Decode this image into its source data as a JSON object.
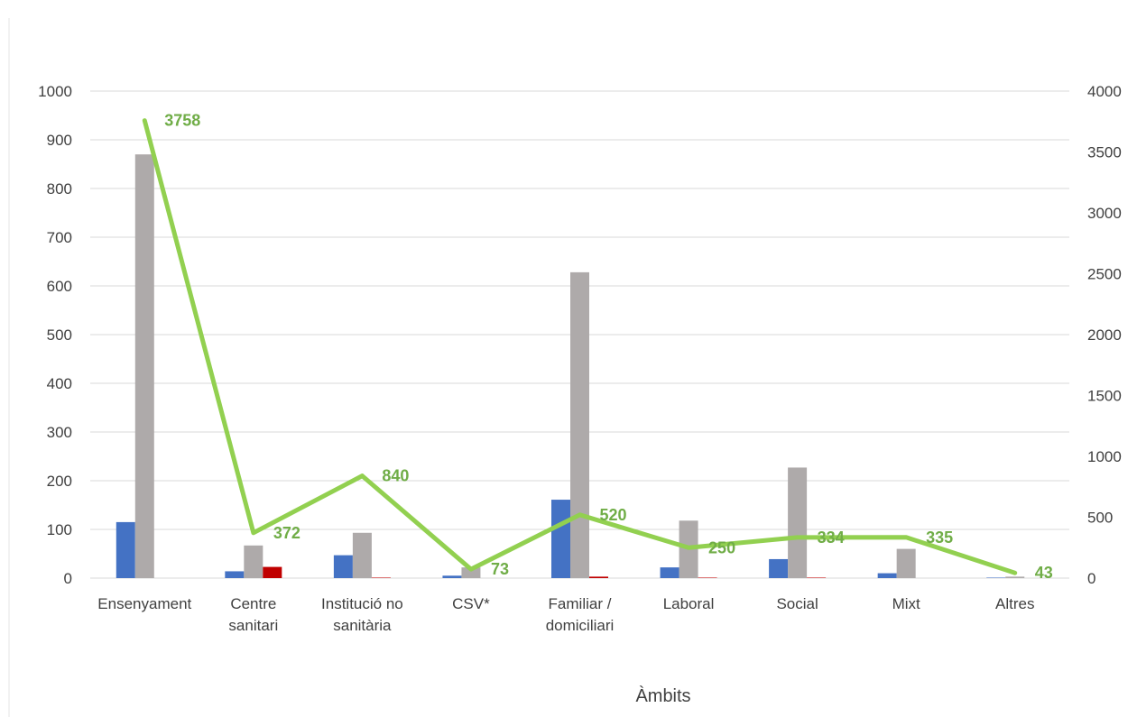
{
  "chart_data": {
    "type": "bar",
    "xlabel": "Àmbits",
    "categories": [
      "Ensenyament",
      "Centre sanitari",
      "Institució no sanitària",
      "CSV*",
      "Familiar / domiciliari",
      "Laboral",
      "Social",
      "Mixt",
      "Altres"
    ],
    "category_lines": [
      [
        "Ensenyament"
      ],
      [
        "Centre",
        "sanitari"
      ],
      [
        "Institució no",
        "sanitària"
      ],
      [
        "CSV*"
      ],
      [
        "Familiar /",
        "domiciliari"
      ],
      [
        "Laboral"
      ],
      [
        "Social"
      ],
      [
        "Mixt"
      ],
      [
        "Altres"
      ]
    ],
    "y_left": {
      "min": 0,
      "max": 1000,
      "ticks": [
        0,
        100,
        200,
        300,
        400,
        500,
        600,
        700,
        800,
        900,
        1000
      ]
    },
    "y_right": {
      "min": 0,
      "max": 4000,
      "ticks": [
        0,
        500,
        1000,
        1500,
        2000,
        2500,
        3000,
        3500,
        4000
      ]
    },
    "grid": true,
    "bar_series": [
      {
        "color": "#4472c4",
        "axis": "left",
        "values": [
          115,
          14,
          47,
          5,
          161,
          22,
          39,
          10,
          1
        ]
      },
      {
        "color": "#aeaaaa",
        "axis": "left",
        "values": [
          870,
          67,
          93,
          22,
          628,
          118,
          227,
          60,
          3
        ]
      },
      {
        "color": "#c00000",
        "axis": "left",
        "values": [
          0,
          23,
          1,
          0,
          3,
          1,
          1,
          0,
          0
        ]
      }
    ],
    "line_series": {
      "color": "#92d050",
      "axis": "right",
      "values": [
        3758,
        372,
        840,
        73,
        520,
        250,
        334,
        335,
        43
      ],
      "labels": [
        "3758",
        "372",
        "840",
        "73",
        "520",
        "250",
        "334",
        "335",
        "43"
      ]
    }
  }
}
